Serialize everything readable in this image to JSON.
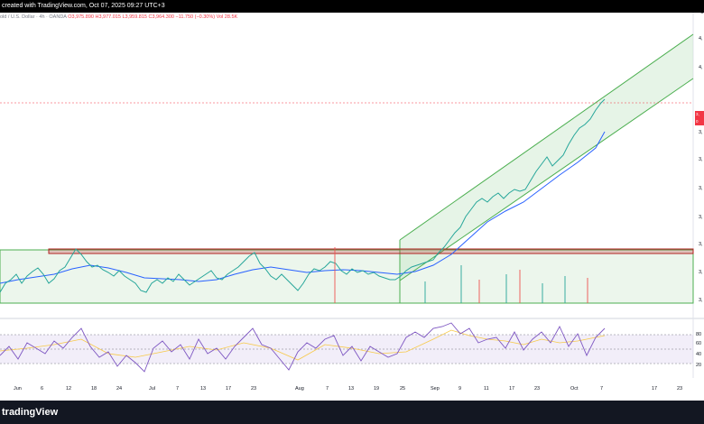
{
  "header": {
    "text": "created with TradingView.com, Oct 07, 2025 09:27 UTC+3"
  },
  "legend": {
    "symbol": "old / U.S. Dollar · 4h · OANDA",
    "ohlc": "O3,975.890 H3,977.015 L3,959.815 C3,964.300 −11.750 (−0.30%)",
    "volume": "Vol 28.5K"
  },
  "price_tag": {
    "line1": "3,",
    "line2": "0"
  },
  "price_axis": {
    "labels": [
      "4,",
      "4,",
      "3,",
      "3,",
      "3,",
      "3,",
      "3,",
      "3,",
      "3,"
    ],
    "currency_label": "U"
  },
  "rsi_axis": {
    "labels": [
      "80",
      "60",
      "40",
      "20"
    ]
  },
  "time_axis": {
    "labels": [
      "Jun",
      "6",
      "12",
      "18",
      "24",
      "Jul",
      "7",
      "13",
      "17",
      "23",
      "Aug",
      "7",
      "13",
      "19",
      "25",
      "Sep",
      "9",
      "11",
      "17",
      "23",
      "Oct",
      "7",
      "17",
      "23"
    ]
  },
  "branding": {
    "logo_text": "tradingView"
  },
  "colors": {
    "channel_green": "#4caf50",
    "resistance": "#b22222",
    "ma_blue": "#2962ff",
    "rsi_purple": "#7e57c2",
    "rsi_signal": "#f7c948",
    "price_tag": "#f23645"
  }
}
